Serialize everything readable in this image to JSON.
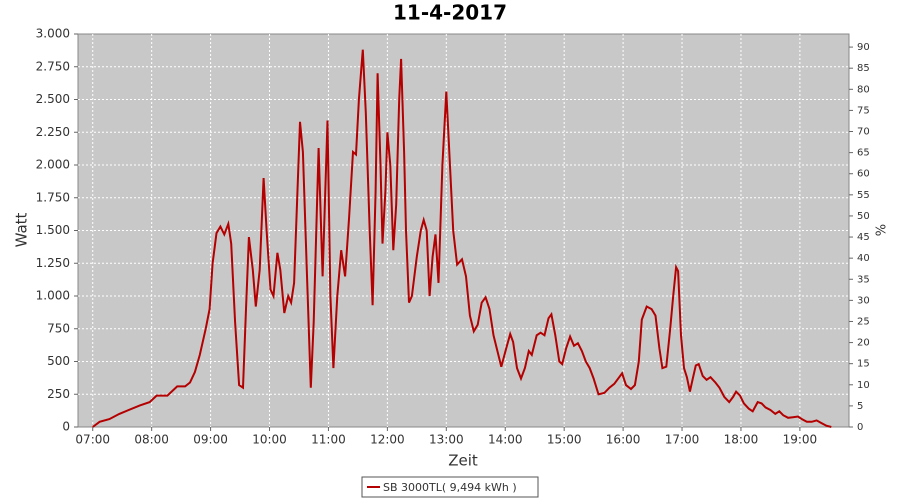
{
  "chart_data": {
    "type": "line",
    "title": "11-4-2017",
    "x_label": "Zeit",
    "y_label": "Watt",
    "y2_label": "%",
    "x": [
      "07:00",
      "07:07",
      "07:17",
      "07:27",
      "07:48",
      "07:58",
      "08:05",
      "08:16",
      "08:26",
      "08:34",
      "08:39",
      "08:44",
      "08:49",
      "08:55",
      "08:59",
      "09:02",
      "09:06",
      "09:10",
      "09:14",
      "09:18",
      "09:21",
      "09:25",
      "09:29",
      "09:33",
      "09:36",
      "09:39",
      "09:43",
      "09:46",
      "09:50",
      "09:54",
      "09:57",
      "10:01",
      "10:04",
      "10:08",
      "10:11",
      "10:15",
      "10:19",
      "10:22",
      "10:25",
      "10:31",
      "10:34",
      "10:38",
      "10:42",
      "10:45",
      "10:50",
      "10:54",
      "10:59",
      "11:02",
      "11:05",
      "11:09",
      "11:13",
      "11:17",
      "11:21",
      "11:25",
      "11:28",
      "11:31",
      "11:35",
      "11:38",
      "11:42",
      "11:45",
      "11:48",
      "11:50",
      "11:53",
      "11:55",
      "11:58",
      "12:00",
      "12:03",
      "12:06",
      "12:09",
      "12:12",
      "12:14",
      "12:17",
      "12:19",
      "12:22",
      "12:25",
      "12:30",
      "12:34",
      "12:37",
      "12:40",
      "12:43",
      "12:46",
      "12:49",
      "12:52",
      "12:56",
      "13:00",
      "13:03",
      "13:07",
      "13:11",
      "13:16",
      "13:20",
      "13:24",
      "13:28",
      "13:32",
      "13:36",
      "13:40",
      "13:44",
      "13:48",
      "13:52",
      "13:56",
      "14:01",
      "14:05",
      "14:08",
      "14:12",
      "14:16",
      "14:20",
      "14:24",
      "14:27",
      "14:32",
      "14:36",
      "14:40",
      "14:44",
      "14:47",
      "14:51",
      "14:55",
      "14:58",
      "15:02",
      "15:06",
      "15:10",
      "15:14",
      "15:18",
      "15:22",
      "15:26",
      "15:30",
      "15:35",
      "15:41",
      "15:46",
      "15:51",
      "15:56",
      "15:59",
      "16:03",
      "16:08",
      "16:12",
      "16:16",
      "16:19",
      "16:24",
      "16:29",
      "16:33",
      "16:37",
      "16:40",
      "16:44",
      "16:48",
      "16:51",
      "16:54",
      "16:56",
      "16:59",
      "17:02",
      "17:05",
      "17:08",
      "17:11",
      "17:14",
      "17:17",
      "17:21",
      "17:25",
      "17:29",
      "17:34",
      "17:38",
      "17:43",
      "17:48",
      "17:52",
      "17:55",
      "17:59",
      "18:03",
      "18:08",
      "18:12",
      "18:17",
      "18:21",
      "18:25",
      "18:30",
      "18:35",
      "18:39",
      "18:43",
      "18:48",
      "18:53",
      "18:58",
      "19:02",
      "19:07",
      "19:12",
      "19:17",
      "19:22",
      "19:27",
      "19:32"
    ],
    "series": [
      {
        "name": "SB 3000TL( 9,494 kWh )",
        "color": "#b40000",
        "values": [
          0,
          40,
          60,
          100,
          165,
          190,
          240,
          240,
          310,
          310,
          340,
          420,
          550,
          750,
          900,
          1250,
          1480,
          1530,
          1470,
          1550,
          1400,
          800,
          320,
          300,
          900,
          1450,
          1200,
          920,
          1200,
          1900,
          1500,
          1050,
          1000,
          1330,
          1200,
          870,
          1000,
          950,
          1100,
          2330,
          2100,
          1200,
          300,
          800,
          2130,
          1150,
          2340,
          1000,
          450,
          1000,
          1350,
          1150,
          1600,
          2100,
          2080,
          2500,
          2880,
          2400,
          1500,
          930,
          1800,
          2700,
          2000,
          1400,
          1800,
          2250,
          2000,
          1350,
          1700,
          2500,
          2810,
          2100,
          1500,
          950,
          1000,
          1300,
          1500,
          1580,
          1500,
          1000,
          1300,
          1470,
          1100,
          2000,
          2560,
          2100,
          1500,
          1240,
          1280,
          1150,
          850,
          730,
          780,
          950,
          990,
          900,
          700,
          580,
          460,
          600,
          710,
          650,
          450,
          370,
          450,
          580,
          550,
          700,
          720,
          700,
          830,
          860,
          700,
          500,
          480,
          600,
          690,
          620,
          640,
          580,
          500,
          450,
          370,
          250,
          260,
          300,
          330,
          380,
          410,
          320,
          290,
          320,
          500,
          820,
          920,
          900,
          850,
          600,
          450,
          460,
          750,
          1000,
          1220,
          1190,
          700,
          450,
          380,
          270,
          370,
          470,
          480,
          390,
          360,
          380,
          340,
          300,
          230,
          190,
          230,
          270,
          240,
          180,
          140,
          120,
          190,
          180,
          150,
          130,
          100,
          120,
          90,
          70,
          75,
          80,
          60,
          40,
          40,
          50,
          30,
          10,
          0
        ]
      }
    ],
    "xlim": [
      "06:45",
      "19:50"
    ],
    "xticks": [
      "07:00",
      "08:00",
      "09:00",
      "10:00",
      "11:00",
      "12:00",
      "13:00",
      "14:00",
      "15:00",
      "16:00",
      "17:00",
      "18:00",
      "19:00"
    ],
    "ylim": [
      0,
      3000
    ],
    "yticks": [
      0,
      250,
      500,
      750,
      {
        "value": 1000,
        "label": "1.000"
      },
      {
        "value": 1250,
        "label": "1.250"
      },
      {
        "value": 1500,
        "label": "1.500"
      },
      {
        "value": 1750,
        "label": "1.750"
      },
      {
        "value": 2000,
        "label": "2.000"
      },
      {
        "value": 2250,
        "label": "2.250"
      },
      {
        "value": 2500,
        "label": "2.500"
      },
      {
        "value": 2750,
        "label": "2.750"
      },
      {
        "value": 3000,
        "label": "3.000"
      }
    ],
    "y2lim": [
      0,
      93.1
    ],
    "y2ticks": [
      0,
      5,
      10,
      15,
      20,
      25,
      30,
      35,
      40,
      45,
      50,
      55,
      60,
      65,
      70,
      75,
      80,
      85,
      90
    ],
    "grid": true
  }
}
